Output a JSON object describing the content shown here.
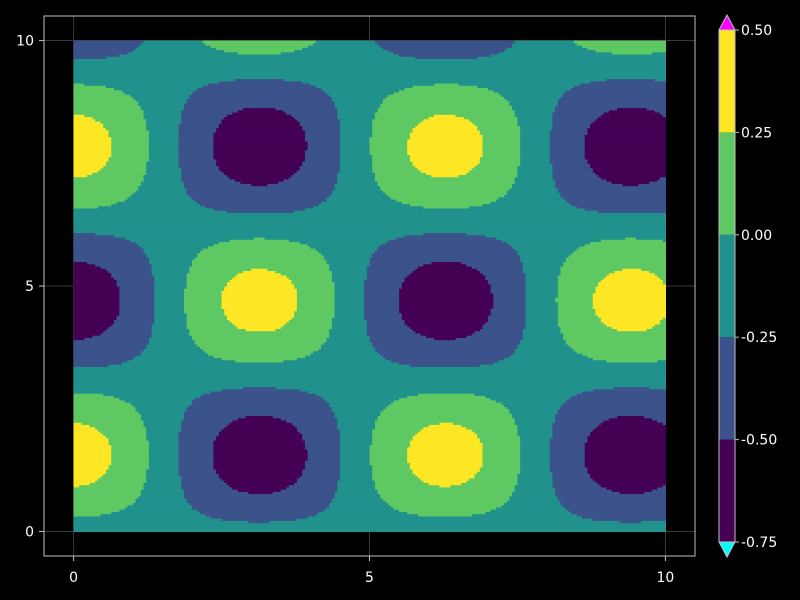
{
  "chart_data": {
    "type": "heatmap",
    "title": "",
    "xlabel": "",
    "ylabel": "",
    "xlim": [
      -0.5,
      10.5
    ],
    "ylim": [
      -0.5,
      10.5
    ],
    "data_extent": {
      "x": [
        0,
        10
      ],
      "y": [
        0,
        10
      ]
    },
    "function_hint": "z = 0.5*cos(x)*sin(y)-0.15 (approx)",
    "x_ticks": [
      "0",
      "5",
      "10"
    ],
    "y_ticks": [
      "0",
      "5",
      "10"
    ],
    "levels": [
      -0.75,
      -0.5,
      -0.25,
      0.0,
      0.25,
      0.5
    ],
    "colorbar": {
      "ticks": [
        "0.50",
        "0.25",
        "0.00",
        "-0.25",
        "-0.50",
        "-0.75"
      ],
      "extend": "both",
      "band_colors": [
        "#440154",
        "#3b528b",
        "#21918c",
        "#5ec962",
        "#fde725"
      ],
      "over_color": "#ff00ff",
      "under_color": "#00ffff"
    },
    "grid": true
  },
  "colors": {
    "background": "#000000",
    "axes_edge": "#bfbfbf",
    "grid": "#3a3a3a",
    "text": "#ffffff"
  }
}
